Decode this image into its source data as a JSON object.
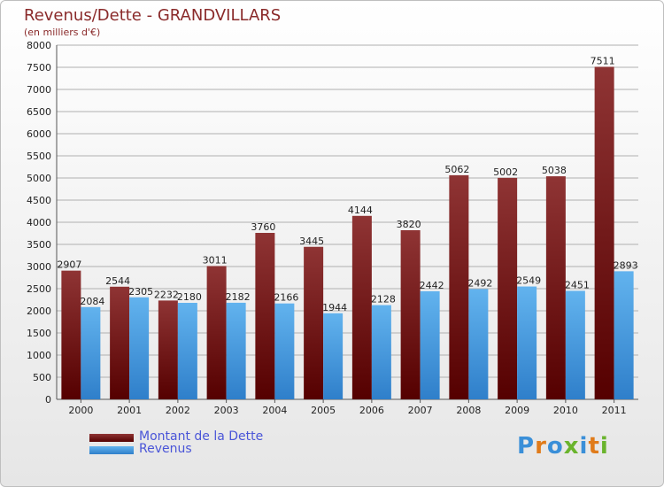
{
  "title": "Revenus/Dette - GRANDVILLARS",
  "subtitle": "(en milliers d'€)",
  "logo": {
    "text": "Proxiti",
    "letter_colors": [
      "#3a8fd8",
      "#e07b1a",
      "#3a8fd8",
      "#6ab42d",
      "#3a8fd8",
      "#e07b1a",
      "#6ab42d"
    ]
  },
  "colors": {
    "dette_top": "#8f3434",
    "dette_bottom": "#550000",
    "revenus_top": "#62b3ee",
    "revenus_bottom": "#2f7fca",
    "grid": "#b0b0b0",
    "axis": "#555555"
  },
  "chart_data": {
    "type": "bar",
    "title": "Revenus/Dette - GRANDVILLARS",
    "subtitle": "(en milliers d'€)",
    "categories": [
      "2000",
      "2001",
      "2002",
      "2003",
      "2004",
      "2005",
      "2006",
      "2007",
      "2008",
      "2009",
      "2010",
      "2011"
    ],
    "series": [
      {
        "name": "Montant de la Dette",
        "values": [
          2907,
          2544,
          2232,
          3011,
          3760,
          3445,
          4144,
          3820,
          5062,
          5002,
          5038,
          7511
        ]
      },
      {
        "name": "Revenus",
        "values": [
          2084,
          2305,
          2180,
          2182,
          2166,
          1944,
          2128,
          2442,
          2492,
          2549,
          2451,
          2893
        ]
      }
    ],
    "ylim": [
      0,
      8000
    ],
    "yticks": [
      0,
      500,
      1000,
      1500,
      2000,
      2500,
      3000,
      3500,
      4000,
      4500,
      5000,
      5500,
      6000,
      6500,
      7000,
      7500,
      8000
    ],
    "grid": true,
    "legend_position": "bottom-left"
  }
}
